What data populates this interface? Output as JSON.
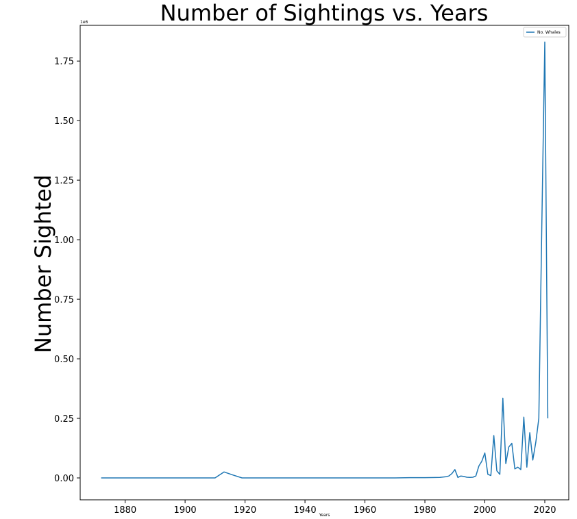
{
  "chart_data": {
    "type": "line",
    "title": "Number of Sightings vs. Years",
    "xlabel": "Years",
    "ylabel": "Number Sighted",
    "y_offset_label": "1e6",
    "xlim": [
      1865,
      2028
    ],
    "ylim": [
      -0.092,
      1.9
    ],
    "xticks": [
      1880,
      1900,
      1920,
      1940,
      1960,
      1980,
      2000,
      2020
    ],
    "xtick_labels": [
      "1880",
      "1900",
      "1920",
      "1940",
      "1960",
      "1980",
      "2000",
      "2020"
    ],
    "yticks": [
      0,
      0.25,
      0.5,
      0.75,
      1.0,
      1.25,
      1.5,
      1.75
    ],
    "ytick_labels": [
      "0.00",
      "0.25",
      "0.50",
      "0.75",
      "1.00",
      "1.25",
      "1.50",
      "1.75"
    ],
    "grid": false,
    "legend_position": "top-right",
    "series": [
      {
        "name": "No. Whales",
        "color": "#1f77b4",
        "x": [
          1872,
          1880,
          1890,
          1900,
          1910,
          1913,
          1916,
          1919,
          1925,
          1935,
          1940,
          1950,
          1960,
          1970,
          1975,
          1980,
          1985,
          1987,
          1988,
          1989,
          1990,
          1991,
          1992,
          1993,
          1994,
          1995,
          1996,
          1997,
          1998,
          1999,
          2000,
          2001,
          2002,
          2003,
          2004,
          2005,
          2006,
          2007,
          2008,
          2009,
          2010,
          2011,
          2012,
          2013,
          2014,
          2015,
          2016,
          2017,
          2018,
          2019,
          2020,
          2021
        ],
        "y": [
          0,
          0,
          0,
          0,
          0,
          0.025,
          0.012,
          0,
          0,
          0,
          0,
          0,
          0,
          0,
          0.001,
          0.001,
          0.002,
          0.005,
          0.008,
          0.018,
          0.035,
          0.002,
          0.008,
          0.006,
          0.003,
          0.002,
          0.003,
          0.008,
          0.05,
          0.07,
          0.105,
          0.015,
          0.01,
          0.178,
          0.03,
          0.015,
          0.335,
          0.06,
          0.13,
          0.145,
          0.038,
          0.045,
          0.035,
          0.255,
          0.045,
          0.19,
          0.075,
          0.15,
          0.25,
          1.05,
          1.83,
          0.25
        ]
      }
    ]
  }
}
